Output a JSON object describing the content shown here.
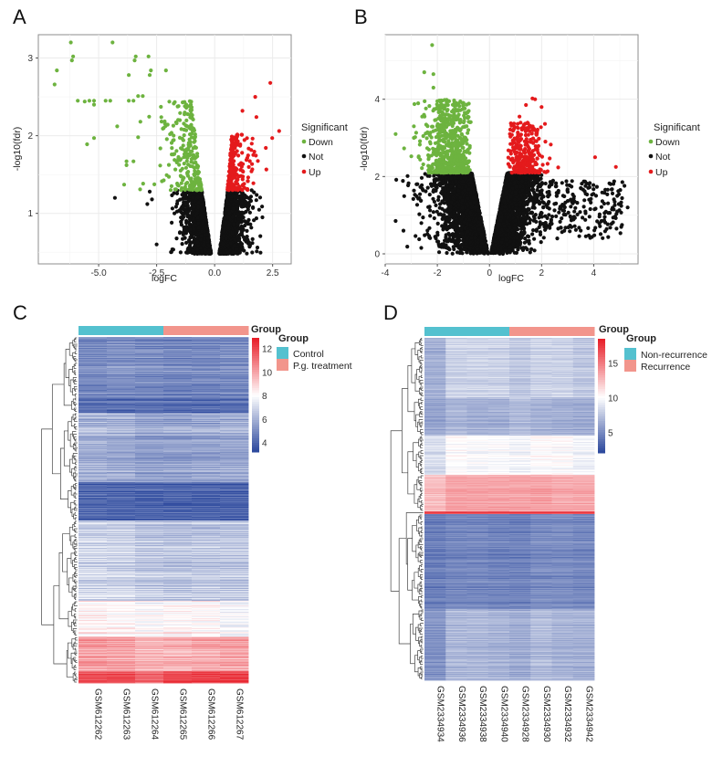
{
  "colors": {
    "down": "#6db33f",
    "not": "#111111",
    "up": "#e41a1c",
    "control": "#54c1cf",
    "treatment": "#f2958c",
    "low": "#2e4a9e",
    "mid": "#ffffff",
    "high": "#e8202a",
    "grid": "#ebebeb",
    "border": "#8c8c8c"
  },
  "chart_data": [
    {
      "id": "A",
      "type": "scatter",
      "panel_label": "A",
      "xlabel": "logFC",
      "ylabel": "-log10(fdr)",
      "xlim": [
        -7.6,
        3.3
      ],
      "ylim": [
        0.35,
        3.3
      ],
      "xticks": [
        -5.0,
        -2.5,
        0.0,
        2.5
      ],
      "xtick_labels": [
        "-5.0",
        "-2.5",
        "0.0",
        "2.5"
      ],
      "yticks": [
        1,
        2,
        3
      ],
      "ytick_labels": [
        "1",
        "2",
        "3"
      ],
      "grid": true,
      "legend_position": "right",
      "legend_title": "Significant",
      "legend": [
        "Down",
        "Not",
        "Up"
      ],
      "significance_threshold_y": 1.3,
      "generated_counts": {
        "Not": 2600,
        "Down": 260,
        "Up": 230
      },
      "outliers": {
        "Down": [
          [
            -6.2,
            3.2
          ],
          [
            -4.4,
            3.2
          ],
          [
            -6.1,
            3.02
          ],
          [
            -6.15,
            2.97
          ],
          [
            -3.4,
            3.02
          ],
          [
            -3.45,
            2.97
          ],
          [
            -2.85,
            3.02
          ],
          [
            -6.8,
            2.84
          ],
          [
            -2.75,
            2.84
          ],
          [
            -2.1,
            2.84
          ],
          [
            -6.9,
            2.66
          ],
          [
            -3.7,
            2.78
          ],
          [
            -2.8,
            2.78
          ],
          [
            -5.9,
            2.45
          ],
          [
            -5.6,
            2.44
          ],
          [
            -5.4,
            2.45
          ],
          [
            -5.2,
            2.45
          ],
          [
            -5.2,
            2.4
          ],
          [
            -4.7,
            2.45
          ],
          [
            -4.5,
            2.45
          ],
          [
            -3.7,
            2.45
          ],
          [
            -3.5,
            2.45
          ],
          [
            -3.3,
            2.51
          ],
          [
            -3.1,
            2.51
          ],
          [
            -4.2,
            2.12
          ],
          [
            -5.2,
            1.97
          ],
          [
            -5.5,
            1.89
          ],
          [
            -3.8,
            1.67
          ],
          [
            -3.8,
            1.62
          ],
          [
            -3.5,
            1.67
          ],
          [
            -3.9,
            1.37
          ],
          [
            -3.3,
            1.98
          ],
          [
            -3.2,
            2.18
          ]
        ],
        "Not": [
          [
            -4.3,
            1.2
          ],
          [
            -2.9,
            1.12
          ],
          [
            -2.7,
            1.18
          ],
          [
            -2.8,
            1.28
          ],
          [
            -2.5,
            0.6
          ]
        ],
        "Up": [
          [
            2.4,
            2.68
          ],
          [
            2.78,
            2.06
          ],
          [
            2.48,
            1.97
          ],
          [
            1.75,
            2.5
          ],
          [
            1.2,
            2.32
          ],
          [
            1.8,
            2.24
          ]
        ]
      }
    },
    {
      "id": "B",
      "type": "scatter",
      "panel_label": "B",
      "xlabel": "logFC",
      "ylabel": "-log10(fdr)",
      "xlim": [
        -4,
        5.7
      ],
      "ylim": [
        -0.26,
        5.67
      ],
      "xticks": [
        -4,
        -2,
        0,
        2,
        4
      ],
      "xtick_labels": [
        "-4",
        "-2",
        "0",
        "2",
        "4"
      ],
      "yticks": [
        0,
        2,
        4
      ],
      "ytick_labels": [
        "0",
        "2",
        "4"
      ],
      "grid": true,
      "legend_position": "right",
      "legend_title": "Significant",
      "legend": [
        "Down",
        "Not",
        "Up"
      ],
      "significance_threshold_y": 2.1,
      "generated_counts": {
        "Not": 5200,
        "Down": 650,
        "Up": 280
      },
      "outliers": {
        "Down": [
          [
            -2.2,
            5.4
          ],
          [
            -2.5,
            4.7
          ],
          [
            -2.15,
            4.65
          ],
          [
            -2.15,
            4.3
          ],
          [
            -3.6,
            3.1
          ],
          [
            -2.9,
            3.0
          ],
          [
            -2.85,
            3.02
          ],
          [
            -2.9,
            3.3
          ],
          [
            -2.0,
            3.95
          ],
          [
            -1.55,
            3.95
          ]
        ],
        "Not": [
          [
            -3.6,
            0.85
          ],
          [
            -3.3,
            0.6
          ],
          [
            -2.8,
            1.8
          ],
          [
            5.3,
            1.2
          ],
          [
            4.9,
            1.5
          ],
          [
            4.7,
            1.15
          ],
          [
            4.4,
            1.3
          ],
          [
            3.5,
            0.6
          ],
          [
            3.5,
            1.7
          ],
          [
            2.6,
            0.4
          ]
        ],
        "Up": [
          [
            4.05,
            2.5
          ],
          [
            4.85,
            2.25
          ],
          [
            1.65,
            4.02
          ],
          [
            1.75,
            4.0
          ],
          [
            2.0,
            3.8
          ],
          [
            1.4,
            3.85
          ],
          [
            1.15,
            3.55
          ]
        ]
      }
    },
    {
      "id": "C",
      "type": "heatmap",
      "panel_label": "C",
      "columns": [
        "GSM612262",
        "GSM612263",
        "GSM612264",
        "GSM612265",
        "GSM612266",
        "GSM612267"
      ],
      "column_groups": [
        "Control",
        "Control",
        "Control",
        "P.g. treatment",
        "P.g. treatment",
        "P.g. treatment"
      ],
      "annotation_title": "Group",
      "legend_title": "Group",
      "groups": [
        "Control",
        "P.g. treatment"
      ],
      "colorbar_ticks": [
        12,
        10,
        8,
        6,
        4
      ],
      "colorbar_labels": [
        "12",
        "10",
        "8",
        "6",
        "4"
      ],
      "colorbar_range": [
        3.2,
        12.9
      ],
      "colorbar_mid": 8,
      "row_blocks": [
        {
          "n_rows": 66,
          "values": [
            5.0,
            5.1,
            5.0,
            4.9,
            4.9,
            5.0
          ]
        },
        {
          "n_rows": 17,
          "values": [
            4.3,
            4.3,
            4.2,
            4.2,
            4.2,
            4.3
          ]
        },
        {
          "n_rows": 76,
          "values": [
            6.0,
            5.9,
            5.6,
            5.6,
            5.7,
            5.8
          ]
        },
        {
          "n_rows": 42,
          "values": [
            3.9,
            3.9,
            3.8,
            3.8,
            3.8,
            3.8
          ]
        },
        {
          "n_rows": 88,
          "values": [
            7.0,
            6.9,
            6.6,
            6.5,
            6.6,
            6.6
          ]
        },
        {
          "n_rows": 39,
          "values": [
            8.4,
            8.3,
            8.1,
            8.3,
            8.3,
            8.0
          ]
        },
        {
          "n_rows": 38,
          "values": [
            10.1,
            10.0,
            9.6,
            9.6,
            9.8,
            9.9
          ]
        },
        {
          "n_rows": 13,
          "values": [
            12.0,
            12.0,
            11.4,
            12.2,
            12.2,
            12.2
          ]
        }
      ]
    },
    {
      "id": "D",
      "type": "heatmap",
      "panel_label": "D",
      "columns": [
        "GSM2334934",
        "GSM2334936",
        "GSM2334938",
        "GSM2334940",
        "GSM2334928",
        "GSM2334930",
        "GSM2334932",
        "GSM2334942"
      ],
      "column_groups": [
        "Non-recurrence",
        "Non-recurrence",
        "Non-recurrence",
        "Non-recurrence",
        "Recurrence",
        "Recurrence",
        "Recurrence",
        "Recurrence"
      ],
      "annotation_title": "Group",
      "legend_title": "Group",
      "groups": [
        "Non-recurrence",
        "Recurrence"
      ],
      "colorbar_ticks": [
        15,
        10,
        5
      ],
      "colorbar_labels": [
        "15",
        "10",
        "5"
      ],
      "colorbar_range": [
        2,
        18.5
      ],
      "colorbar_mid": 10,
      "row_blocks": [
        {
          "n_rows": 65,
          "values": [
            6.5,
            8.0,
            8.0,
            8.0,
            7.5,
            8.0,
            8.0,
            7.5
          ]
        },
        {
          "n_rows": 42,
          "values": [
            6.0,
            6.8,
            6.5,
            6.5,
            7.0,
            6.5,
            6.5,
            6.3
          ]
        },
        {
          "n_rows": 43,
          "values": [
            8.5,
            10.0,
            9.8,
            9.8,
            9.5,
            10.0,
            10.0,
            9.5
          ]
        },
        {
          "n_rows": 40,
          "values": [
            12.5,
            13.5,
            13.5,
            13.5,
            13.5,
            13.5,
            13.2,
            13.3
          ]
        },
        {
          "n_rows": 3,
          "values": [
            17,
            17,
            17,
            17,
            17,
            17,
            17,
            17
          ]
        },
        {
          "n_rows": 104,
          "values": [
            4.2,
            4.6,
            4.6,
            4.4,
            4.4,
            4.8,
            4.8,
            4.6
          ]
        },
        {
          "n_rows": 78,
          "values": [
            5.2,
            6.8,
            6.8,
            6.6,
            6.3,
            7.0,
            6.6,
            6.5
          ]
        }
      ]
    }
  ]
}
